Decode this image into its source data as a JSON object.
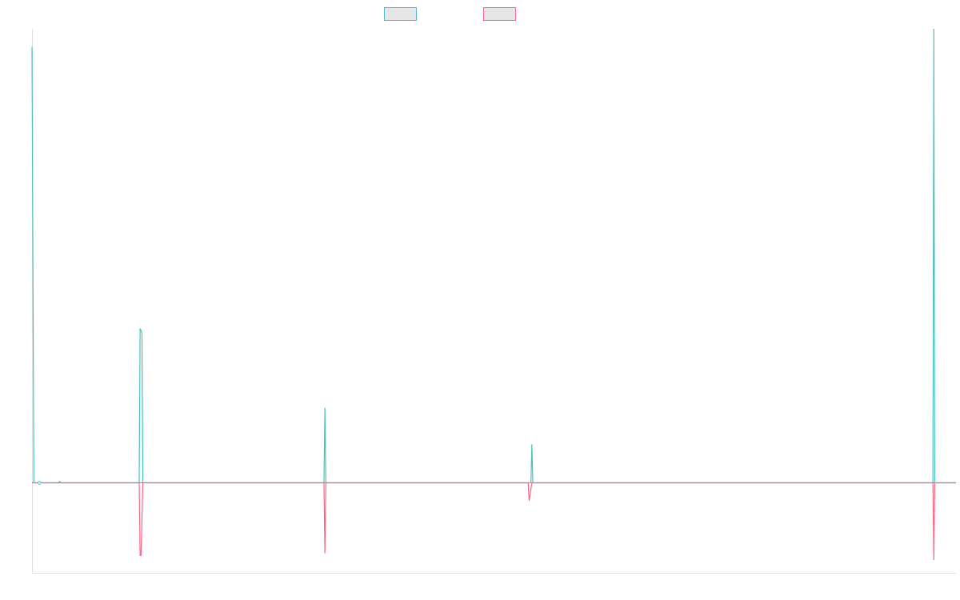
{
  "chart_data": {
    "type": "line",
    "title": "",
    "xlabel": "",
    "ylabel": "",
    "grid": false,
    "legend_position": "top-center",
    "xlim": [
      0,
      1000
    ],
    "ylim": [
      -2000,
      10000
    ],
    "series": [
      {
        "color": "#4bc0c0",
        "fill": "#e6e6e6",
        "points": [
          [
            0,
            9600
          ],
          [
            2,
            0
          ],
          [
            8,
            0
          ],
          [
            30,
            0
          ],
          [
            116,
            0
          ],
          [
            117,
            3400
          ],
          [
            119,
            3300
          ],
          [
            120,
            0
          ],
          [
            316,
            0
          ],
          [
            317,
            1650
          ],
          [
            318,
            0
          ],
          [
            540,
            0
          ],
          [
            541,
            850
          ],
          [
            542,
            0
          ],
          [
            975,
            0
          ],
          [
            976,
            10000
          ],
          [
            977,
            0
          ],
          [
            1000,
            0
          ]
        ]
      },
      {
        "color": "#ff6384",
        "fill": "#e6e6e6",
        "points": [
          [
            0,
            0
          ],
          [
            116,
            0
          ],
          [
            117,
            -1600
          ],
          [
            118,
            -1600
          ],
          [
            120,
            0
          ],
          [
            316,
            0
          ],
          [
            317,
            -1550
          ],
          [
            318,
            0
          ],
          [
            537,
            0
          ],
          [
            538,
            -400
          ],
          [
            541,
            0
          ],
          [
            975,
            0
          ],
          [
            976,
            -1700
          ],
          [
            977,
            0
          ],
          [
            1000,
            0
          ]
        ]
      }
    ]
  }
}
